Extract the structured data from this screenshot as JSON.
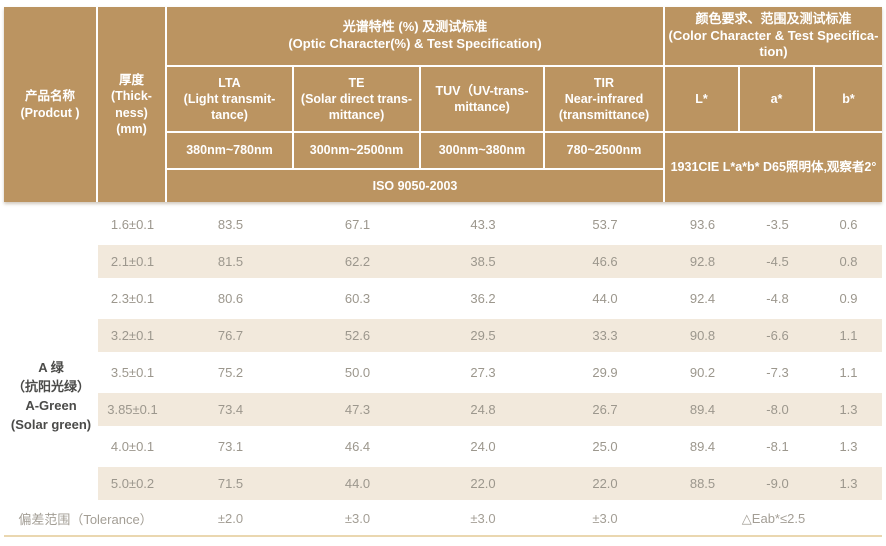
{
  "colors": {
    "header_bg": "#BB9461",
    "stripe_bg": "#F2E9DC",
    "value_text": "#9C978D",
    "product_text": "#4B4B49",
    "bottom_line": "#EAD7B0"
  },
  "header": {
    "product": "产品名称\n(Prodcut )",
    "thickness": "厚度\n(Thick-\nness)\n(mm)",
    "optic_group": "光谱特性 (%) 及测试标准\n(Optic Character(%) & Test Specification)",
    "color_group": "颜色要求、范围及测试标准\n(Color Character & Test Specifica-\ntion)",
    "lta": "LTA\n(Light transmit-\ntance)",
    "te": "TE\n(Solar direct trans-\nmittance)",
    "tuv": "TUV（UV-trans-\nmittance)",
    "tir": "TIR\nNear-infrared\n(transmittance)",
    "l_star": "L*",
    "a_star": "a*",
    "b_star": "b*",
    "range_lta": "380nm~780nm",
    "range_te": "300nm~2500nm",
    "range_tuv": "300nm~380nm",
    "range_tir": "780~2500nm",
    "iso": "ISO 9050-2003",
    "cie": "1931CIE L*a*b* D65照明体,观察者2°"
  },
  "product_label": "A 绿\n（抗阳光绿）\nA-Green\n(Solar green)",
  "rows": [
    {
      "thickness": "1.6±0.1",
      "lta": "83.5",
      "te": "67.1",
      "tuv": "43.3",
      "tir": "53.7",
      "l": "93.6",
      "a": "-3.5",
      "b": "0.6"
    },
    {
      "thickness": "2.1±0.1",
      "lta": "81.5",
      "te": "62.2",
      "tuv": "38.5",
      "tir": "46.6",
      "l": "92.8",
      "a": "-4.5",
      "b": "0.8"
    },
    {
      "thickness": "2.3±0.1",
      "lta": "80.6",
      "te": "60.3",
      "tuv": "36.2",
      "tir": "44.0",
      "l": "92.4",
      "a": "-4.8",
      "b": "0.9"
    },
    {
      "thickness": "3.2±0.1",
      "lta": "76.7",
      "te": "52.6",
      "tuv": "29.5",
      "tir": "33.3",
      "l": "90.8",
      "a": "-6.6",
      "b": "1.1"
    },
    {
      "thickness": "3.5±0.1",
      "lta": "75.2",
      "te": "50.0",
      "tuv": "27.3",
      "tir": "29.9",
      "l": "90.2",
      "a": "-7.3",
      "b": "1.1"
    },
    {
      "thickness": "3.85±0.1",
      "lta": "73.4",
      "te": "47.3",
      "tuv": "24.8",
      "tir": "26.7",
      "l": "89.4",
      "a": "-8.0",
      "b": "1.3"
    },
    {
      "thickness": "4.0±0.1",
      "lta": "73.1",
      "te": "46.4",
      "tuv": "24.0",
      "tir": "25.0",
      "l": "89.4",
      "a": "-8.1",
      "b": "1.3"
    },
    {
      "thickness": "5.0±0.2",
      "lta": "71.5",
      "te": "44.0",
      "tuv": "22.0",
      "tir": "22.0",
      "l": "88.5",
      "a": "-9.0",
      "b": "1.3"
    }
  ],
  "tolerance": {
    "label": "偏差范围（Tolerance）",
    "lta": "±2.0",
    "te": "±3.0",
    "tuv": "±3.0",
    "tir": "±3.0",
    "color": "△Eab*≤2.5"
  }
}
